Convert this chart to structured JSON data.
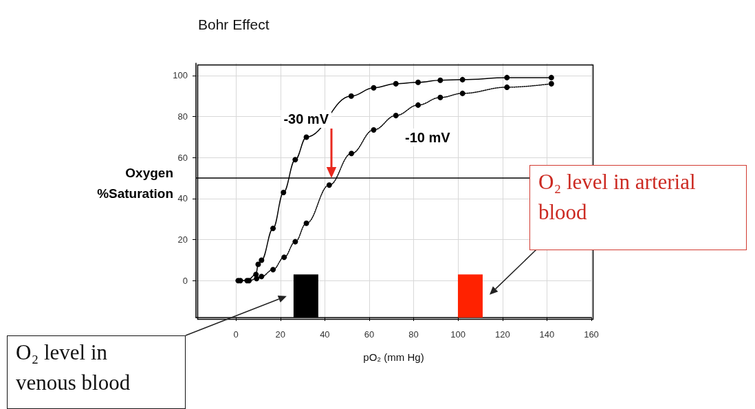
{
  "chart_data": {
    "type": "line",
    "title": "Bohr Effect",
    "xlabel": "pO₂ (mm Hg)",
    "ylabel": "Oxygen\n%Saturation",
    "xlim": [
      -18,
      160
    ],
    "xticks": [
      0,
      20,
      40,
      60,
      80,
      100,
      120,
      140,
      160
    ],
    "ylim": [
      -18,
      106
    ],
    "yticks": [
      0,
      20,
      40,
      60,
      80,
      100
    ],
    "grid": true,
    "marker": "circle",
    "series": [
      {
        "name": "-30 mV",
        "color": "#000000",
        "line_style": "solid",
        "x": [
          1,
          5,
          9,
          10,
          11.5,
          16.7,
          21.4,
          26.7,
          31.7,
          51.9,
          62,
          72,
          82,
          92,
          102,
          122,
          142
        ],
        "values": [
          0,
          0,
          3,
          8,
          10,
          25.5,
          43,
          59,
          70,
          90,
          94,
          96,
          96.7,
          97.7,
          98,
          99,
          99
        ]
      },
      {
        "name": "-10 mV",
        "color": "#000000",
        "line_style": "dotted",
        "x": [
          2,
          5.9,
          9.3,
          11.5,
          16.7,
          21.7,
          26.7,
          31.7,
          42,
          52,
          62,
          72,
          82,
          92,
          102,
          122,
          142
        ],
        "values": [
          0,
          0,
          1,
          2,
          5.4,
          11.4,
          19,
          28,
          46.6,
          62,
          73.5,
          80.5,
          85.6,
          89.3,
          91.3,
          94.3,
          96
        ]
      },
      {
        "type": "bar",
        "x": [
          31.5,
          105.5
        ],
        "base": [
          -18,
          -18
        ],
        "values": [
          21,
          21
        ],
        "colors": [
          "#000000",
          "#ff2200"
        ]
      }
    ],
    "ref_lines": [
      {
        "axis": "y",
        "value": 50,
        "color": "#000000"
      }
    ],
    "annotations": [
      "O₂ level in venous blood",
      "O₂ level in arterial blood"
    ]
  }
}
